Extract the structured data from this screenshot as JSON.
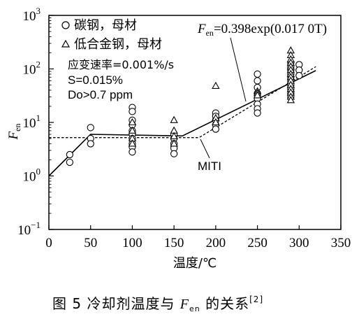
{
  "chart_data": {
    "type": "scatter",
    "xlabel": "温度/℃",
    "ylabel_main": "F",
    "ylabel_sub": "en",
    "x_ticks": [
      "0",
      "50",
      "100",
      "150",
      "200",
      "250",
      "300",
      "350"
    ],
    "y_ticks": [
      {
        "base": "10",
        "exp": "3"
      },
      {
        "base": "10",
        "exp": "2"
      },
      {
        "base": "10",
        "exp": "1"
      },
      {
        "base": "10",
        "exp": "0"
      },
      {
        "base": "10",
        "exp": "−1"
      }
    ],
    "xlim": [
      0,
      350
    ],
    "ylim_log10": [
      -1,
      3
    ],
    "legend": [
      {
        "symbol": "circle",
        "label": "碳钢，母材"
      },
      {
        "symbol": "triangle",
        "label": "低合金钢，母材"
      }
    ],
    "conditions": [
      "应变速率=0.001%/s",
      "S=0.015%",
      "Do>0.7 ppm"
    ],
    "equation": {
      "lhs_main": "F",
      "lhs_sub": "en",
      "rhs": "=0.398exp(0.017 0T)"
    },
    "miti_label": "MITI",
    "series": [
      {
        "name": "碳钢，母材",
        "marker": "circle",
        "points": [
          [
            25,
            2.5
          ],
          [
            25,
            1.8
          ],
          [
            50,
            8
          ],
          [
            50,
            5
          ],
          [
            50,
            4
          ],
          [
            100,
            19
          ],
          [
            100,
            16
          ],
          [
            100,
            11
          ],
          [
            100,
            9
          ],
          [
            100,
            7
          ],
          [
            100,
            6
          ],
          [
            100,
            5
          ],
          [
            100,
            4
          ],
          [
            100,
            3.5
          ],
          [
            100,
            2.8
          ],
          [
            150,
            6
          ],
          [
            150,
            5
          ],
          [
            150,
            4
          ],
          [
            150,
            3.3
          ],
          [
            150,
            2.6
          ],
          [
            200,
            15
          ],
          [
            200,
            13
          ],
          [
            200,
            11
          ],
          [
            200,
            9
          ],
          [
            200,
            7.5
          ],
          [
            250,
            80
          ],
          [
            250,
            60
          ],
          [
            250,
            45
          ],
          [
            250,
            35
          ],
          [
            250,
            28
          ],
          [
            250,
            22
          ],
          [
            250,
            18
          ],
          [
            250,
            15
          ],
          [
            290,
            130
          ],
          [
            290,
            110
          ],
          [
            290,
            95
          ],
          [
            290,
            80
          ],
          [
            290,
            70
          ],
          [
            290,
            60
          ],
          [
            290,
            50
          ],
          [
            290,
            42
          ],
          [
            290,
            35
          ],
          [
            290,
            30
          ],
          [
            300,
            120
          ],
          [
            300,
            95
          ],
          [
            300,
            75
          ]
        ]
      },
      {
        "name": "低合金钢，母材",
        "marker": "triangle",
        "points": [
          [
            100,
            10
          ],
          [
            100,
            7
          ],
          [
            100,
            5
          ],
          [
            100,
            4
          ],
          [
            150,
            11
          ],
          [
            150,
            7
          ],
          [
            150,
            5.5
          ],
          [
            150,
            4
          ],
          [
            200,
            48
          ],
          [
            200,
            12
          ],
          [
            200,
            10
          ],
          [
            250,
            38
          ],
          [
            250,
            35
          ],
          [
            250,
            32
          ],
          [
            290,
            220
          ],
          [
            290,
            180
          ],
          [
            290,
            150
          ],
          [
            290,
            130
          ],
          [
            290,
            110
          ],
          [
            290,
            95
          ],
          [
            290,
            80
          ],
          [
            290,
            70
          ],
          [
            290,
            60
          ],
          [
            290,
            50
          ],
          [
            290,
            42
          ],
          [
            290,
            36
          ],
          [
            290,
            30
          ],
          [
            290,
            26
          ]
        ]
      }
    ],
    "lines": [
      {
        "name": "fit",
        "style": "solid",
        "points": [
          [
            0,
            1
          ],
          [
            50,
            6
          ],
          [
            160,
            5.6
          ],
          [
            320,
            93
          ]
        ]
      },
      {
        "name": "MITI",
        "style": "dashed",
        "points": [
          [
            0,
            5.2
          ],
          [
            180,
            5.2
          ],
          [
            320,
            110
          ]
        ]
      }
    ]
  },
  "caption": {
    "prefix": "图 5    冷却剂温度与 ",
    "var_main": "F",
    "var_sub": "en",
    "suffix": " 的关系",
    "ref": "[2]"
  }
}
